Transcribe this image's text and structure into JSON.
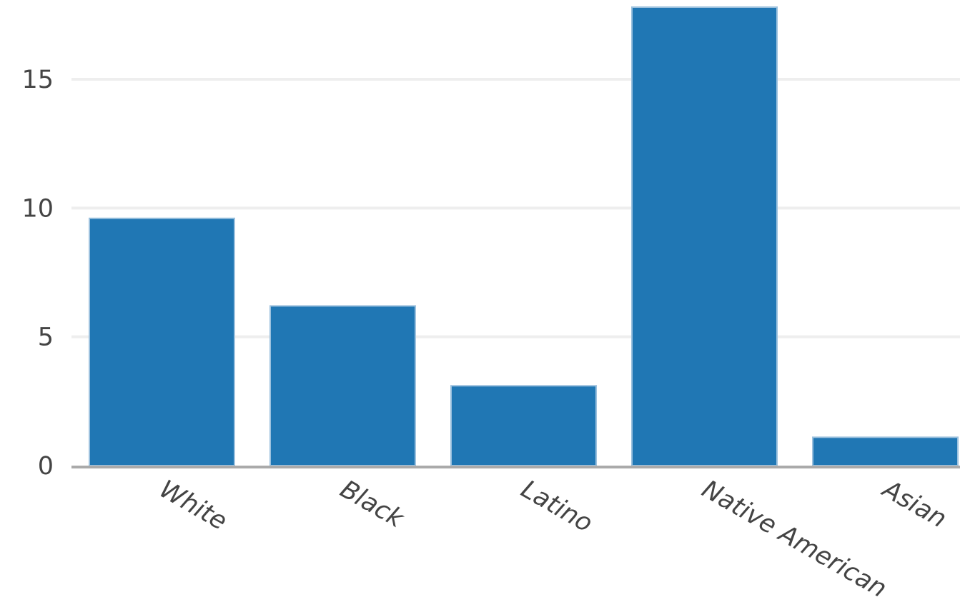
{
  "chart_data": {
    "type": "bar",
    "title": "",
    "xlabel": "",
    "ylabel": "",
    "categories": [
      "White",
      "Black",
      "Latino",
      "Native American",
      "Asian"
    ],
    "values": [
      9.6,
      6.2,
      3.1,
      17.8,
      1.1
    ],
    "ylim": [
      0,
      17.8
    ],
    "yticks": [
      0,
      5,
      10,
      15
    ],
    "grid": true,
    "legend": "none",
    "bar_color": "#2077b4",
    "grid_color": "#eeeeee",
    "axis_color": "#aaaaaa"
  }
}
